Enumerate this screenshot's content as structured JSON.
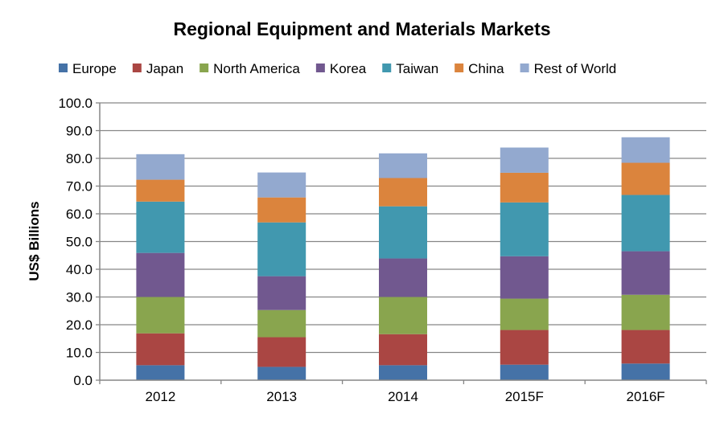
{
  "chart_data": {
    "type": "bar",
    "stacked": true,
    "title": "Regional Equipment and Materials Markets",
    "xlabel": "",
    "ylabel": "US$ Billions",
    "ylim": [
      0,
      100
    ],
    "yticks": [
      "0.0",
      "10.0",
      "20.0",
      "30.0",
      "40.0",
      "50.0",
      "60.0",
      "70.0",
      "80.0",
      "90.0",
      "100.0"
    ],
    "grid": true,
    "legend": "top",
    "categories": [
      "2012",
      "2013",
      "2014",
      "2015F",
      "2016F"
    ],
    "series": [
      {
        "name": "Europe",
        "color": "#4572a7",
        "values": [
          5.4,
          4.8,
          5.4,
          5.6,
          6.0
        ]
      },
      {
        "name": "Japan",
        "color": "#aa4643",
        "values": [
          11.5,
          10.7,
          11.2,
          12.5,
          12.1
        ]
      },
      {
        "name": "North America",
        "color": "#89a54e",
        "values": [
          13.1,
          9.8,
          13.4,
          11.3,
          12.7
        ]
      },
      {
        "name": "Korea",
        "color": "#71588f",
        "values": [
          15.9,
          12.2,
          13.9,
          15.3,
          15.7
        ]
      },
      {
        "name": "Taiwan",
        "color": "#4198af",
        "values": [
          18.5,
          19.4,
          18.8,
          19.4,
          20.3
        ]
      },
      {
        "name": "China",
        "color": "#db843d",
        "values": [
          7.9,
          9.0,
          10.2,
          10.7,
          11.6
        ]
      },
      {
        "name": "Rest of World",
        "color": "#93a9cf",
        "values": [
          9.2,
          9.0,
          8.9,
          9.1,
          9.2
        ]
      }
    ]
  }
}
